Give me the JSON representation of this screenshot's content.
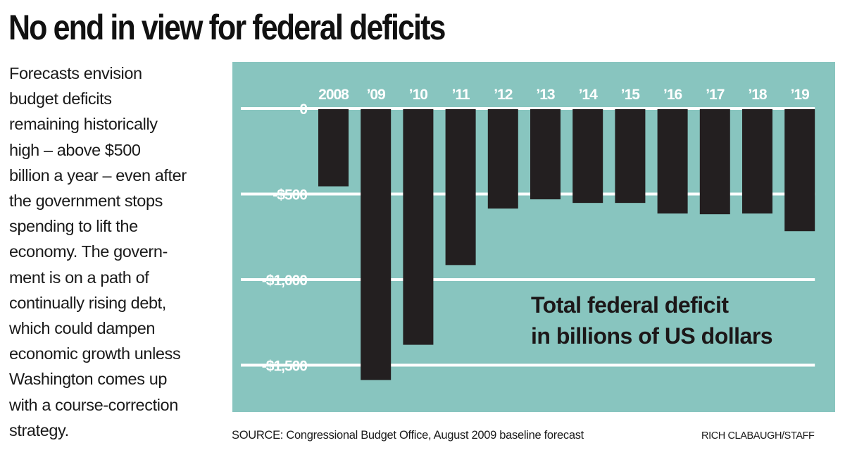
{
  "headline": "No end in view for federal deficits",
  "body_lines": [
    "Forecasts envision",
    "budget deficits",
    "remaining historically",
    "high – above $500",
    "billion a year – even after",
    "the government stops",
    "spending to lift the",
    "economy. The govern-",
    "ment is on a path of",
    "continually rising debt,",
    "which could dampen",
    "economic growth unless",
    "Washington comes up",
    "with a course-correction",
    "strategy."
  ],
  "source": "SOURCE: Congressional Budget Office, August 2009 baseline forecast",
  "credit": "RICH CLABAUGH/STAFF",
  "colors": {
    "panel_background": "#88c5bf",
    "bar": "#231f20",
    "gridline": "#ffffff",
    "tick_text": "#ffffff",
    "label_text": "#1c1718"
  },
  "chart_data": {
    "type": "bar",
    "title": "No end in view for federal deficits",
    "annotation": [
      "Total federal deficit",
      "in billions of US dollars"
    ],
    "xlabel": "",
    "ylabel": "Total federal deficit in billions of US dollars",
    "categories": [
      "2008",
      "’09",
      "’10",
      "’11",
      "’12",
      "’13",
      "’14",
      "’15",
      "’16",
      "’17",
      "’18",
      "’19"
    ],
    "values": [
      -455,
      -1587,
      -1381,
      -915,
      -585,
      -531,
      -552,
      -552,
      -614,
      -618,
      -614,
      -717
    ],
    "ylim": [
      -1500,
      0
    ],
    "yticks": [
      0,
      -500,
      -1000,
      -1500
    ],
    "ytick_labels": [
      "0",
      "-$500",
      "-$1,000",
      "-$1,500"
    ],
    "grid": true,
    "x_axis_position": "top",
    "legend": "none"
  }
}
